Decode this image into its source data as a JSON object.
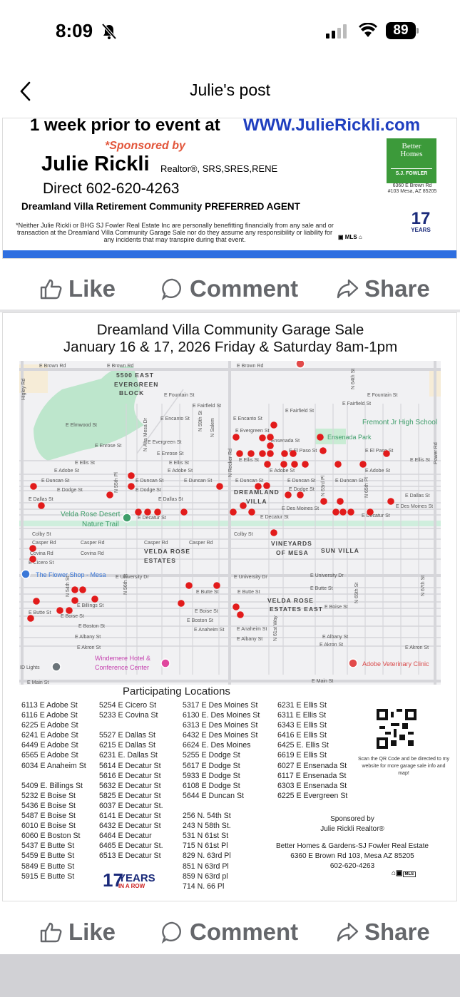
{
  "status_bar": {
    "time": "8:09",
    "battery": "89",
    "icons": [
      "bell-slash-icon",
      "signal-icon",
      "wifi-icon",
      "battery-icon"
    ]
  },
  "header": {
    "title": "Julie's post",
    "back_icon": "chevron-left-icon"
  },
  "post1": {
    "top_line": "1  week prior to event at",
    "website": "WWW.JulieRickli.com",
    "sponsored_by": "*Sponsored  by",
    "name": "Julie Rickli",
    "credentials": "Realtor®, SRS,SRES,RENE",
    "direct": "Direct 602-620-4263",
    "preferred": "Dreamland Villa Retirement Community PREFERRED AGENT",
    "disclaimer": "*Neither Julie Rickli or BHG SJ Fowler Real Estate Inc are personally benefitting financially from any sale and or transaction at the Dreamland Villa Community Garage Sale nor do they assume any responsibility or liability for any incidents that may transpire during that event.",
    "logo_text": "Better Homes and Gardens Real Estate",
    "logo_sub": "S.J. FOWLER",
    "office_line1": "6360 E Brown Rd",
    "office_line2": "#103 Mesa, AZ 85205",
    "years_badge": "17 YEARS",
    "accent_blue": "#2f6fe0"
  },
  "actions": {
    "like": "Like",
    "comment": "Comment",
    "share": "Share"
  },
  "post2": {
    "title_line1": "Dreamland Villa Community Garage Sale",
    "title_line2": "January 16 & 17, 2026 Friday & Saturday 8am-1pm",
    "participating_title": "Participating Locations",
    "columns": [
      [
        "6113 E Adobe St",
        "6116 E Adobe St",
        "6225 E Adobe St",
        "6241 E Adobe St",
        "6449 E Adobe St",
        "6565 E Adobe St",
        "6034 E Anaheim St",
        "",
        "5409 E. Billings St",
        "5232 E Boise St",
        "5436 E Boise St",
        "5487 E Boise St",
        "6010 E Boise St",
        "6060 E Boston St",
        "5437 E Butte St",
        "5459 E Butte St",
        "5849 E Butte St",
        "5915 E Butte St"
      ],
      [
        "5254 E Cicero St",
        "5233 E Covina St",
        "",
        "5527 E Dallas St",
        "6215 E Dallas St",
        "6231 E. Dallas St",
        "5614 E Decatur St",
        "5616 E Decatur St",
        "5632 E Decatur St",
        "5825 E Decatur St",
        "6037 E Decatur St.",
        "6141 E Decatur St",
        "6432 E Decatur St",
        "6464 E Decatur",
        "6465 E Decatur St.",
        "6513 E Decatur St"
      ],
      [
        "5317 E Des Moines St",
        "6130 E. Des Moines St",
        "6313 E Des Moines St",
        "6432 E Des Moines St",
        "6624 E. Des Moines",
        "5255 E Dodge St",
        "5617 E Dodge St",
        "5933 E Dodge St",
        "6108 E Dodge St",
        "5644 E Duncan St",
        "",
        "256 N. 54th St",
        "243 N 58th St.",
        "531 N 61st St",
        "715 N 61st Pl",
        "829 N. 63rd Pl",
        "851 N 63rd Pl",
        "859 N 63rd pl",
        "714 N. 66 Pl"
      ],
      [
        "6231 E Ellis St",
        "6311 E Ellis St",
        "6343 E Ellis St",
        "6416 E Ellis St",
        "6425 E. Ellis St",
        "6619 E Ellis St",
        "6027 E Ensenada St",
        "6117 E Ensenada St",
        "6303 E Ensenada St",
        "6225 E Evergreen St"
      ]
    ],
    "qr_caption": "Scan the QR Code and be directed to my website for more garage sale info and map!",
    "sponsored_by": "Sponsored by",
    "sponsor_name": "Julie Rickli  Realtor®",
    "brokerage": "Better Homes & Gardens-SJ Fowler Real Estate",
    "address": "6360 E Brown Rd 103, Mesa AZ 85205",
    "phone": "602-620-4263",
    "years_badge": "17 YEARS IN A ROW",
    "marker_color": "#e21b1b"
  },
  "map": {
    "labels": [
      "E Brown Rd",
      "E Brown Rd",
      "E Brown Rd",
      "5500 EAST",
      "EVERGREEN",
      "BLOCK",
      "Higley Rd",
      "E Fountain St",
      "E Fountain St",
      "E Fairfield St",
      "E Fairfield St",
      "E Fairfield St",
      "E Elmwood St",
      "E Encanto St",
      "E Encanto St",
      "Fremont Jr High School",
      "E Evergreen St",
      "E Evergreen St",
      "Ensenada Park",
      "Ensenada St",
      "E Enrose St",
      "E Enrose St",
      "E Ellis St",
      "E Ellis St",
      "E Ellis St",
      "E Ellis St",
      "E El Paso St",
      "E El Paso St",
      "E Adobe St",
      "E Adobe St",
      "E Adobe St",
      "E Adobe St",
      "E Duncan St",
      "E Duncan St",
      "E Duncan St",
      "E Duncan St",
      "E Duncan St",
      "E Duncan St",
      "E Dodge St",
      "E Dodge St",
      "E Dodge St",
      "E Dallas St",
      "E Dallas St",
      "E Dallas St",
      "E Des Moines St",
      "E Des Moines St",
      "E Decatur St",
      "E Decatur St",
      "E Decatur St",
      "DREAMLAND",
      "VILLA",
      "Velda Rose Desert",
      "Nature Trail",
      "Colby St",
      "Colby St",
      "Casper Rd",
      "Covina Rd",
      "E Cicero St",
      "Casper Rd",
      "Covina Rd",
      "Casper Rd",
      "Casper Rd",
      "VELDA ROSE",
      "ESTATES",
      "VINEYARDS",
      "OF MESA",
      "SUN VILLA",
      "The Flower Shop - Mesa",
      "E University Dr",
      "E University Dr",
      "E University Dr",
      "E Billings St",
      "E Butte St",
      "E Boise St",
      "E Boise St",
      "E Boise St",
      "E Butte St",
      "E Butte St",
      "E Butte St",
      "VELDA ROSE",
      "ESTATES EAST",
      "E Boston St",
      "E Boston St",
      "E Albany St",
      "E Akron St",
      "E Anaheim St",
      "E Anaheim St",
      "E Albany St",
      "E Albany St",
      "E Akron St",
      "E Akron St",
      "Windemere Hotel &",
      "Conference Center",
      "ID Lights",
      "Adobe Veterinary Clinic",
      "E Main St",
      "E Main St",
      "N Recker Rd",
      "Power Rd",
      "N Alta Mesa Dr",
      "N 59th St",
      "N Salem",
      "N 64th St",
      "N 63rd Pl",
      "N 65th Pl",
      "N 54th St",
      "N 61st Way",
      "N 65th St",
      "N 67th St",
      "N 55th Pl",
      "N 56th St"
    ]
  }
}
